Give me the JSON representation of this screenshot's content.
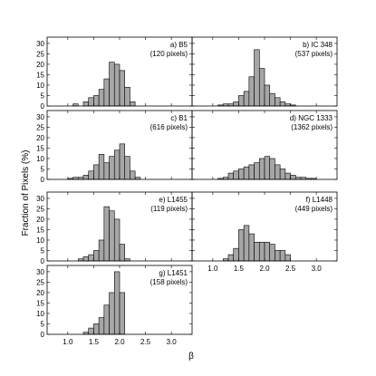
{
  "chart_data": {
    "type": "bar",
    "ylabel": "Fraction of Pixels (%)",
    "xlabel": "β",
    "xlim": [
      0.6,
      3.4
    ],
    "ylim": [
      0,
      33
    ],
    "xticks": [
      "1.0",
      "1.5",
      "2.0",
      "2.5",
      "3.0"
    ],
    "yticks": [
      "0",
      "5",
      "10",
      "15",
      "20",
      "25",
      "30"
    ],
    "bin_width": 0.1,
    "bar_color": "#a6a6a6",
    "panels": [
      {
        "name": "B5",
        "label_line1": "a) B5",
        "label_line2": "(120 pixels)",
        "bin_starts": [
          1.1,
          1.2,
          1.3,
          1.4,
          1.5,
          1.6,
          1.7,
          1.8,
          1.9,
          2.0,
          2.1,
          2.2
        ],
        "values": [
          1,
          0,
          2,
          4,
          5,
          8,
          13,
          21,
          20,
          17,
          9,
          2
        ]
      },
      {
        "name": "IC 348",
        "label_line1": "b) IC 348",
        "label_line2": "(537 pixels)",
        "bin_starts": [
          1.1,
          1.2,
          1.3,
          1.4,
          1.5,
          1.6,
          1.7,
          1.8,
          1.9,
          2.0,
          2.1,
          2.2,
          2.3,
          2.4,
          2.5
        ],
        "values": [
          0.5,
          1,
          1,
          2,
          5,
          7,
          14,
          27,
          18,
          10,
          6,
          4,
          2,
          1,
          0.5
        ]
      },
      {
        "name": "B1",
        "label_line1": "c) B1",
        "label_line2": "(616 pixels)",
        "bin_starts": [
          1.0,
          1.1,
          1.2,
          1.3,
          1.4,
          1.5,
          1.6,
          1.7,
          1.8,
          1.9,
          2.0,
          2.1,
          2.2,
          2.3
        ],
        "values": [
          0.5,
          1,
          1,
          2,
          4,
          7,
          12,
          8,
          11,
          14,
          17,
          11,
          4,
          1
        ]
      },
      {
        "name": "NGC 1333",
        "label_line1": "d) NGC 1333",
        "label_line2": "(1362 pixels)",
        "bin_starts": [
          1.1,
          1.2,
          1.3,
          1.4,
          1.5,
          1.6,
          1.7,
          1.8,
          1.9,
          2.0,
          2.1,
          2.2,
          2.3,
          2.4,
          2.5,
          2.6,
          2.7,
          2.8,
          2.9
        ],
        "values": [
          0.5,
          1,
          3,
          4,
          5,
          6,
          7,
          8,
          10,
          11,
          10,
          7,
          5,
          3,
          2,
          1,
          1,
          0.5,
          0.5
        ]
      },
      {
        "name": "L1455",
        "label_line1": "e) L1455",
        "label_line2": "(119 pixels)",
        "bin_starts": [
          1.2,
          1.3,
          1.4,
          1.5,
          1.6,
          1.7,
          1.8,
          1.9,
          2.0,
          2.1
        ],
        "values": [
          1,
          2,
          3,
          5,
          10,
          26,
          24,
          20,
          8,
          1
        ]
      },
      {
        "name": "L1448",
        "label_line1": "f) L1448",
        "label_line2": "(449 pixels)",
        "bin_starts": [
          1.2,
          1.3,
          1.4,
          1.5,
          1.6,
          1.7,
          1.8,
          1.9,
          2.0,
          2.1,
          2.2,
          2.3,
          2.4
        ],
        "values": [
          1,
          3,
          6,
          15,
          17,
          13,
          9,
          9,
          9,
          8,
          5,
          5,
          3
        ]
      },
      {
        "name": "L1451",
        "label_line1": "g) L1451",
        "label_line2": "(158 pixels)",
        "bin_starts": [
          1.3,
          1.4,
          1.5,
          1.6,
          1.7,
          1.8,
          1.9,
          2.0
        ],
        "values": [
          1,
          3,
          5,
          8,
          14,
          20,
          30,
          20
        ]
      }
    ]
  }
}
